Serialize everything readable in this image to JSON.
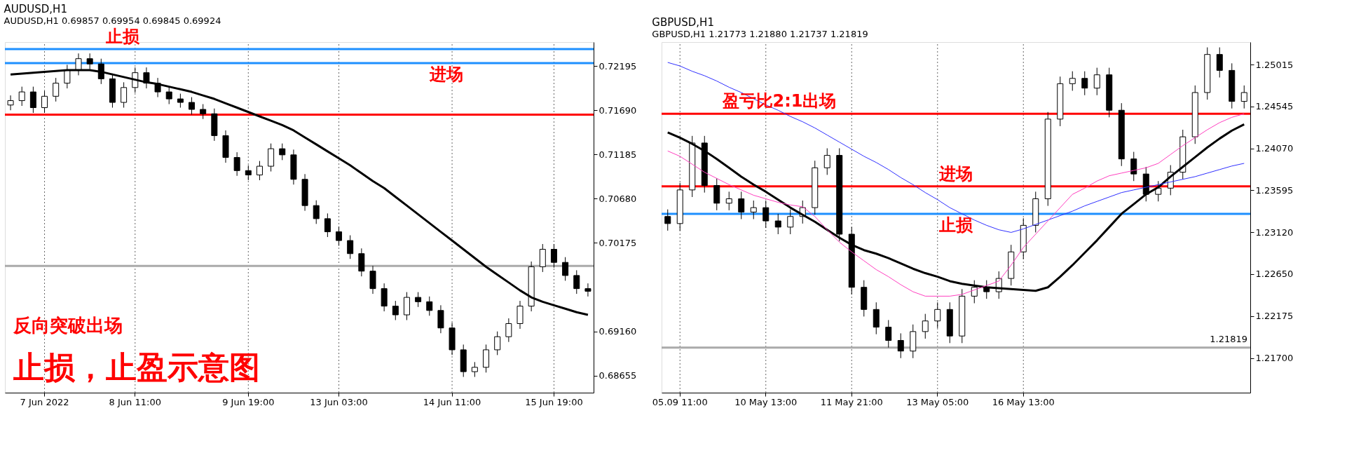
{
  "chart_data": [
    {
      "type": "candlestick",
      "title": "AUDUSD,H1",
      "subtitle": "AUDUSD,H1 0.69857 0.69954 0.69845 0.69924",
      "categories": [
        null,
        null,
        null,
        "7 Jun 2022",
        null,
        null,
        null,
        null,
        null,
        null,
        null,
        "8 Jun 11:00",
        null,
        null,
        null,
        null,
        null,
        null,
        null,
        null,
        null,
        "9 Jun 19:00",
        null,
        null,
        null,
        null,
        null,
        null,
        null,
        "13 Jun 03:00",
        null,
        null,
        null,
        null,
        null,
        null,
        null,
        null,
        null,
        "14 Jun 11:00",
        null,
        null,
        null,
        null,
        null,
        null,
        null,
        null,
        "15 Jun 19:00",
        null,
        null,
        null
      ],
      "ohlc": [
        [
          0.7175,
          0.7186,
          0.7169,
          0.718
        ],
        [
          0.718,
          0.7196,
          0.7174,
          0.719
        ],
        [
          0.719,
          0.7196,
          0.7166,
          0.7172
        ],
        [
          0.7172,
          0.7191,
          0.7166,
          0.7185
        ],
        [
          0.7185,
          0.7206,
          0.7179,
          0.72
        ],
        [
          0.72,
          0.7221,
          0.7194,
          0.7215
        ],
        [
          0.7215,
          0.7234,
          0.7209,
          0.7228
        ],
        [
          0.7228,
          0.7234,
          0.7216,
          0.7222
        ],
        [
          0.7222,
          0.7228,
          0.7199,
          0.7205
        ],
        [
          0.7205,
          0.7211,
          0.7172,
          0.7178
        ],
        [
          0.7178,
          0.7201,
          0.7172,
          0.7195
        ],
        [
          0.7195,
          0.7218,
          0.7189,
          0.7212
        ],
        [
          0.7212,
          0.7218,
          0.7194,
          0.72
        ],
        [
          0.72,
          0.7206,
          0.7184,
          0.719
        ],
        [
          0.719,
          0.7196,
          0.7176,
          0.7182
        ],
        [
          0.7182,
          0.7188,
          0.7172,
          0.7178
        ],
        [
          0.7178,
          0.7184,
          0.7164,
          0.717
        ],
        [
          0.717,
          0.7176,
          0.7159,
          0.7165
        ],
        [
          0.7165,
          0.7171,
          0.7134,
          0.714
        ],
        [
          0.714,
          0.7146,
          0.7109,
          0.7115
        ],
        [
          0.7115,
          0.7121,
          0.7094,
          0.71
        ],
        [
          0.71,
          0.7106,
          0.7089,
          0.7095
        ],
        [
          0.7095,
          0.7111,
          0.7089,
          0.7105
        ],
        [
          0.7105,
          0.7131,
          0.7099,
          0.7125
        ],
        [
          0.7125,
          0.7131,
          0.7112,
          0.7118
        ],
        [
          0.7118,
          0.7124,
          0.7084,
          0.709
        ],
        [
          0.709,
          0.7096,
          0.7054,
          0.706
        ],
        [
          0.706,
          0.7066,
          0.7039,
          0.7045
        ],
        [
          0.7045,
          0.7051,
          0.7024,
          0.703
        ],
        [
          0.703,
          0.7036,
          0.7014,
          0.702
        ],
        [
          0.702,
          0.7026,
          0.6999,
          0.7005
        ],
        [
          0.7005,
          0.7011,
          0.6979,
          0.6985
        ],
        [
          0.6985,
          0.6991,
          0.6959,
          0.6965
        ],
        [
          0.6965,
          0.6971,
          0.6939,
          0.6945
        ],
        [
          0.6945,
          0.6951,
          0.6929,
          0.6935
        ],
        [
          0.6935,
          0.6961,
          0.6929,
          0.6955
        ],
        [
          0.6955,
          0.6961,
          0.6944,
          0.695
        ],
        [
          0.695,
          0.6956,
          0.6934,
          0.694
        ],
        [
          0.694,
          0.6946,
          0.6914,
          0.692
        ],
        [
          0.692,
          0.6926,
          0.6889,
          0.6895
        ],
        [
          0.6895,
          0.6901,
          0.6864,
          0.687
        ],
        [
          0.687,
          0.6881,
          0.6864,
          0.6875
        ],
        [
          0.6875,
          0.6901,
          0.6869,
          0.6895
        ],
        [
          0.6895,
          0.6916,
          0.6889,
          0.691
        ],
        [
          0.691,
          0.6931,
          0.6904,
          0.6925
        ],
        [
          0.6925,
          0.6951,
          0.6919,
          0.6945
        ],
        [
          0.6945,
          0.6996,
          0.6939,
          0.699
        ],
        [
          0.699,
          0.7016,
          0.6984,
          0.701
        ],
        [
          0.701,
          0.7016,
          0.6989,
          0.6995
        ],
        [
          0.6995,
          0.7001,
          0.6974,
          0.698
        ],
        [
          0.698,
          0.6986,
          0.6959,
          0.6965
        ],
        [
          0.6965,
          0.6971,
          0.6956,
          0.6962
        ]
      ],
      "series": [
        {
          "type": "line",
          "color": "#000000",
          "values": [
            0.721,
            0.7211,
            0.7212,
            0.7213,
            0.7214,
            0.7215,
            0.7215,
            0.7215,
            0.7213,
            0.721,
            0.7207,
            0.7204,
            0.7201,
            0.7199,
            0.7196,
            0.7193,
            0.719,
            0.7186,
            0.7182,
            0.7177,
            0.7172,
            0.7167,
            0.7162,
            0.7157,
            0.7152,
            0.7146,
            0.7138,
            0.713,
            0.7122,
            0.7114,
            0.7106,
            0.7097,
            0.7088,
            0.708,
            0.707,
            0.706,
            0.705,
            0.704,
            0.703,
            0.702,
            0.701,
            0.7,
            0.699,
            0.6981,
            0.6972,
            0.6963,
            0.6955,
            0.695,
            0.6946,
            0.6942,
            0.6938,
            0.6935
          ]
        }
      ],
      "ylim": [
        0.6846,
        0.7247
      ],
      "yticks": [
        {
          "value": 0.68655,
          "label": "0.68655"
        },
        {
          "value": 0.6916,
          "label": "0.69160"
        },
        {
          "value": 0.70175,
          "label": "0.70175"
        },
        {
          "value": 0.7068,
          "label": "0.70680"
        },
        {
          "value": 0.71185,
          "label": "0.71185"
        },
        {
          "value": 0.7169,
          "label": "0.71690"
        },
        {
          "value": 0.72195,
          "label": "0.72195"
        }
      ],
      "ref_lines": [
        {
          "axis": "y",
          "value": 0.7239,
          "label": "止损",
          "color": "#1e90ff"
        },
        {
          "axis": "y",
          "value": 0.7223,
          "label": "进场",
          "color": "#1e90ff"
        },
        {
          "axis": "y",
          "value": 0.7164,
          "color": "#ff0000"
        },
        {
          "axis": "y",
          "value": 0.6991,
          "color": "#aaaaaa"
        }
      ],
      "annotations": [
        "反向突破出场",
        "止损，止盈示意图"
      ],
      "grid": "x"
    },
    {
      "type": "candlestick",
      "title": "GBPUSD,H1",
      "subtitle": "GBPUSD,H1 1.21773 1.21880 1.21737 1.21819",
      "categories": [
        null,
        "05.09 11:00",
        null,
        null,
        null,
        null,
        null,
        null,
        "10 May 13:00",
        null,
        null,
        null,
        null,
        null,
        null,
        "11 May 21:00",
        null,
        null,
        null,
        null,
        null,
        null,
        "13 May 05:00",
        null,
        null,
        null,
        null,
        null,
        null,
        "16 May 13:00",
        null,
        null,
        null,
        null,
        null,
        null,
        null,
        null,
        null,
        null,
        null,
        null,
        null,
        null,
        null,
        null,
        null,
        null
      ],
      "ohlc": [
        [
          1.233,
          1.2338,
          1.2314,
          1.2322
        ],
        [
          1.2322,
          1.2368,
          1.2314,
          1.236
        ],
        [
          1.236,
          1.2421,
          1.2352,
          1.2413
        ],
        [
          1.2413,
          1.2421,
          1.2357,
          1.2365
        ],
        [
          1.2365,
          1.2373,
          1.2337,
          1.2345
        ],
        [
          1.2345,
          1.2358,
          1.2337,
          1.235
        ],
        [
          1.235,
          1.2358,
          1.2327,
          1.2335
        ],
        [
          1.2335,
          1.2348,
          1.2327,
          1.234
        ],
        [
          1.234,
          1.2348,
          1.2317,
          1.2325
        ],
        [
          1.2325,
          1.2333,
          1.231,
          1.2318
        ],
        [
          1.2318,
          1.2338,
          1.231,
          1.233
        ],
        [
          1.233,
          1.2348,
          1.2322,
          1.234
        ],
        [
          1.234,
          1.2393,
          1.2332,
          1.2385
        ],
        [
          1.2385,
          1.2407,
          1.2377,
          1.2399
        ],
        [
          1.2399,
          1.2407,
          1.2302,
          1.231
        ],
        [
          1.231,
          1.2318,
          1.2242,
          1.225
        ],
        [
          1.225,
          1.2258,
          1.2217,
          1.2225
        ],
        [
          1.2225,
          1.2233,
          1.2197,
          1.2205
        ],
        [
          1.2205,
          1.2213,
          1.2182,
          1.219
        ],
        [
          1.219,
          1.2198,
          1.217,
          1.2178
        ],
        [
          1.2178,
          1.2208,
          1.217,
          1.22
        ],
        [
          1.22,
          1.222,
          1.2192,
          1.2212
        ],
        [
          1.2212,
          1.2233,
          1.2204,
          1.2225
        ],
        [
          1.2225,
          1.2233,
          1.2187,
          1.2195
        ],
        [
          1.2195,
          1.2248,
          1.2187,
          1.224
        ],
        [
          1.224,
          1.2258,
          1.2232,
          1.225
        ],
        [
          1.225,
          1.2258,
          1.2237,
          1.2245
        ],
        [
          1.2245,
          1.2268,
          1.2237,
          1.226
        ],
        [
          1.226,
          1.2298,
          1.2252,
          1.229
        ],
        [
          1.229,
          1.2328,
          1.2282,
          1.232
        ],
        [
          1.232,
          1.2358,
          1.2312,
          1.235
        ],
        [
          1.235,
          1.2448,
          1.2342,
          1.244
        ],
        [
          1.244,
          1.2488,
          1.2432,
          1.248
        ],
        [
          1.248,
          1.2494,
          1.2472,
          1.2486
        ],
        [
          1.2486,
          1.2494,
          1.2467,
          1.2475
        ],
        [
          1.2475,
          1.2498,
          1.2467,
          1.249
        ],
        [
          1.249,
          1.2498,
          1.2442,
          1.245
        ],
        [
          1.245,
          1.2458,
          1.2387,
          1.2395
        ],
        [
          1.2395,
          1.2403,
          1.237,
          1.2378
        ],
        [
          1.2378,
          1.2386,
          1.2347,
          1.2355
        ],
        [
          1.2355,
          1.237,
          1.2347,
          1.2362
        ],
        [
          1.2362,
          1.2388,
          1.2354,
          1.238
        ],
        [
          1.238,
          1.2428,
          1.2372,
          1.242
        ],
        [
          1.242,
          1.2478,
          1.2412,
          1.247
        ],
        [
          1.247,
          1.2521,
          1.2462,
          1.2513
        ],
        [
          1.2513,
          1.2521,
          1.2487,
          1.2495
        ],
        [
          1.2495,
          1.2503,
          1.2452,
          1.246
        ],
        [
          1.246,
          1.2478,
          1.2452,
          1.247
        ]
      ],
      "series": [
        {
          "type": "line",
          "color": "#000000",
          "values": [
            1.2425,
            1.2419,
            1.2412,
            1.2404,
            1.2395,
            1.2385,
            1.2375,
            1.2366,
            1.2358,
            1.2349,
            1.234,
            1.2332,
            1.2324,
            1.2315,
            1.2306,
            1.2298,
            1.2292,
            1.2288,
            1.2283,
            1.2277,
            1.2271,
            1.2266,
            1.2262,
            1.2257,
            1.2254,
            1.2252,
            1.225,
            1.2249,
            1.2248,
            1.2247,
            1.2246,
            1.225,
            1.2262,
            1.2275,
            1.2289,
            1.2303,
            1.2318,
            1.2333,
            1.2344,
            1.2355,
            1.2363,
            1.2375,
            1.2386,
            1.2397,
            1.2408,
            1.2418,
            1.2427,
            1.2434
          ]
        },
        {
          "type": "line",
          "color": "#3030ff",
          "values": [
            1.2504,
            1.25,
            1.2494,
            1.2489,
            1.2483,
            1.2476,
            1.247,
            1.2463,
            1.2456,
            1.245,
            1.2443,
            1.2437,
            1.243,
            1.2422,
            1.2414,
            1.2406,
            1.2398,
            1.2391,
            1.2383,
            1.2374,
            1.2366,
            1.2357,
            1.2349,
            1.234,
            1.2333,
            1.2326,
            1.232,
            1.2315,
            1.2312,
            1.2316,
            1.2321,
            1.2326,
            1.2331,
            1.2336,
            1.2342,
            1.2347,
            1.2352,
            1.2357,
            1.236,
            1.2363,
            1.2366,
            1.2369,
            1.2372,
            1.2375,
            1.2379,
            1.2383,
            1.2387,
            1.239
          ]
        },
        {
          "type": "line",
          "color": "#ff40c0",
          "values": [
            1.2404,
            1.2398,
            1.2389,
            1.238,
            1.2373,
            1.2366,
            1.236,
            1.2354,
            1.235,
            1.2346,
            1.2343,
            1.2341,
            1.233,
            1.2315,
            1.2301,
            1.229,
            1.228,
            1.227,
            1.2262,
            1.2253,
            1.2245,
            1.224,
            1.224,
            1.224,
            1.2242,
            1.2247,
            1.2252,
            1.2257,
            1.2275,
            1.2295,
            1.231,
            1.2325,
            1.234,
            1.2355,
            1.2362,
            1.237,
            1.2376,
            1.2379,
            1.2382,
            1.2385,
            1.239,
            1.24,
            1.241,
            1.2419,
            1.2428,
            1.2436,
            1.2442,
            1.2446
          ]
        }
      ],
      "ylim": [
        1.2131,
        1.2527
      ],
      "yticks": [
        {
          "value": 1.217,
          "label": "1.21700"
        },
        {
          "value": 1.22175,
          "label": "1.22175"
        },
        {
          "value": 1.2265,
          "label": "1.22650"
        },
        {
          "value": 1.2312,
          "label": "1.23120"
        },
        {
          "value": 1.23595,
          "label": "1.23595"
        },
        {
          "value": 1.2407,
          "label": "1.24070"
        },
        {
          "value": 1.24545,
          "label": "1.24545"
        },
        {
          "value": 1.25015,
          "label": "1.25015"
        }
      ],
      "ref_lines": [
        {
          "axis": "y",
          "value": 1.2446,
          "label": "盈亏比2:1出场",
          "color": "#ff0000"
        },
        {
          "axis": "y",
          "value": 1.2364,
          "label": "进场",
          "color": "#ff0000"
        },
        {
          "axis": "y",
          "value": 1.2333,
          "label": "止损",
          "color": "#1e90ff"
        },
        {
          "axis": "y",
          "value": 1.21819,
          "label": "1.21819",
          "color": "#aaaaaa"
        }
      ],
      "grid": "x"
    }
  ]
}
